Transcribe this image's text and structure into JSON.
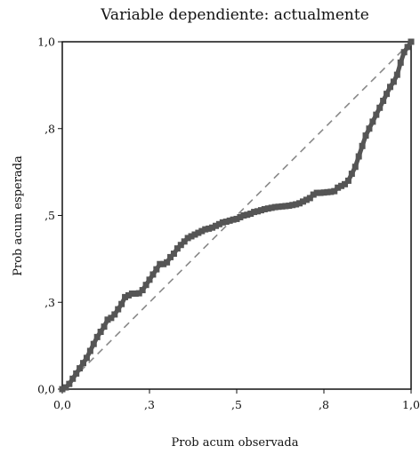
{
  "chart_data": {
    "type": "line",
    "title": "Variable dependiente: actualmente",
    "xlabel": "Prob acum observada",
    "ylabel": "Prob acum esperada",
    "xlim": [
      0,
      1
    ],
    "ylim": [
      0,
      1
    ],
    "x_ticks": [
      {
        "value": 0.0,
        "label": "0,0"
      },
      {
        "value": 0.25,
        "label": ",3"
      },
      {
        "value": 0.5,
        "label": ",5"
      },
      {
        "value": 0.75,
        "label": ",8"
      },
      {
        "value": 1.0,
        "label": "1,0"
      }
    ],
    "y_ticks": [
      {
        "value": 0.0,
        "label": "0,0"
      },
      {
        "value": 0.25,
        "label": ",3"
      },
      {
        "value": 0.5,
        "label": ",5"
      },
      {
        "value": 0.75,
        "label": ",8"
      },
      {
        "value": 1.0,
        "label": "1,0"
      }
    ],
    "grid": false,
    "series": [
      {
        "role": "observed",
        "color": "#555555",
        "style": "thick-square-markers",
        "x": [
          0.0,
          0.01,
          0.02,
          0.03,
          0.04,
          0.05,
          0.06,
          0.07,
          0.08,
          0.09,
          0.1,
          0.11,
          0.12,
          0.13,
          0.14,
          0.15,
          0.16,
          0.17,
          0.18,
          0.19,
          0.2,
          0.21,
          0.22,
          0.23,
          0.24,
          0.25,
          0.26,
          0.27,
          0.28,
          0.29,
          0.3,
          0.31,
          0.32,
          0.33,
          0.34,
          0.35,
          0.36,
          0.37,
          0.38,
          0.39,
          0.4,
          0.41,
          0.42,
          0.43,
          0.44,
          0.45,
          0.46,
          0.47,
          0.48,
          0.49,
          0.5,
          0.51,
          0.52,
          0.53,
          0.54,
          0.55,
          0.56,
          0.57,
          0.58,
          0.59,
          0.6,
          0.61,
          0.62,
          0.63,
          0.64,
          0.65,
          0.66,
          0.67,
          0.68,
          0.69,
          0.7,
          0.71,
          0.72,
          0.73,
          0.74,
          0.75,
          0.76,
          0.77,
          0.78,
          0.79,
          0.8,
          0.81,
          0.82,
          0.83,
          0.84,
          0.85,
          0.86,
          0.87,
          0.88,
          0.89,
          0.9,
          0.91,
          0.92,
          0.93,
          0.94,
          0.95,
          0.96,
          0.97,
          0.98,
          0.99,
          1.0
        ],
        "y": [
          0.0,
          0.005,
          0.015,
          0.03,
          0.045,
          0.06,
          0.075,
          0.09,
          0.11,
          0.13,
          0.15,
          0.165,
          0.18,
          0.2,
          0.205,
          0.215,
          0.23,
          0.245,
          0.265,
          0.27,
          0.275,
          0.275,
          0.276,
          0.285,
          0.3,
          0.315,
          0.33,
          0.345,
          0.36,
          0.36,
          0.365,
          0.38,
          0.39,
          0.405,
          0.415,
          0.425,
          0.435,
          0.44,
          0.445,
          0.45,
          0.455,
          0.46,
          0.462,
          0.465,
          0.47,
          0.475,
          0.48,
          0.482,
          0.485,
          0.488,
          0.49,
          0.495,
          0.5,
          0.502,
          0.505,
          0.51,
          0.512,
          0.515,
          0.518,
          0.52,
          0.522,
          0.524,
          0.525,
          0.526,
          0.527,
          0.528,
          0.53,
          0.532,
          0.535,
          0.54,
          0.545,
          0.55,
          0.56,
          0.565,
          0.565,
          0.566,
          0.567,
          0.568,
          0.57,
          0.58,
          0.585,
          0.59,
          0.6,
          0.62,
          0.64,
          0.67,
          0.7,
          0.73,
          0.75,
          0.77,
          0.79,
          0.81,
          0.83,
          0.85,
          0.87,
          0.885,
          0.905,
          0.94,
          0.97,
          0.985,
          1.0
        ]
      },
      {
        "role": "reference",
        "color": "#888888",
        "style": "dashed",
        "x": [
          0,
          1
        ],
        "y": [
          0,
          1
        ]
      }
    ]
  }
}
